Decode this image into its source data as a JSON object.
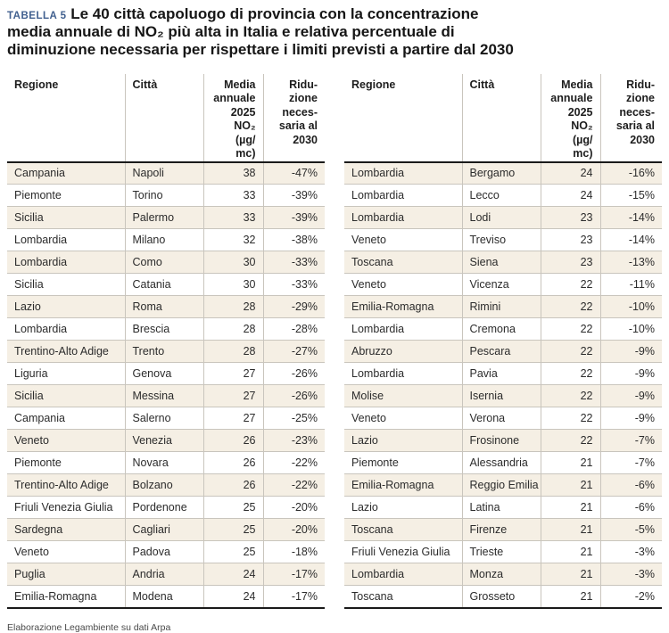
{
  "page": {
    "tag_label": "TABELLA 5",
    "title": "Le 40 città capoluogo di provincia con la concentrazione\nmedia annuale di NO₂ più alta in Italia e relativa percentuale di\ndiminuzione necessaria per rispettare i limiti previsti a partire dal 2030",
    "footer": "Elaborazione Legambiente su dati Arpa"
  },
  "columns": {
    "region": "Regione",
    "city": "Città",
    "annual_mean": "Media\nannuale\n2025\nNO₂ (µg/\nmc)",
    "reduction": "Ridu-\nzione\nneces-\nsaria al\n2030"
  },
  "tables": [
    {
      "rows": [
        [
          "Campania",
          "Napoli",
          "38",
          "-47%"
        ],
        [
          "Piemonte",
          "Torino",
          "33",
          "-39%"
        ],
        [
          "Sicilia",
          "Palermo",
          "33",
          "-39%"
        ],
        [
          "Lombardia",
          "Milano",
          "32",
          "-38%"
        ],
        [
          "Lombardia",
          "Como",
          "30",
          "-33%"
        ],
        [
          "Sicilia",
          "Catania",
          "30",
          "-33%"
        ],
        [
          "Lazio",
          "Roma",
          "28",
          "-29%"
        ],
        [
          "Lombardia",
          "Brescia",
          "28",
          "-28%"
        ],
        [
          "Trentino-Alto Adige",
          "Trento",
          "28",
          "-27%"
        ],
        [
          "Liguria",
          "Genova",
          "27",
          "-26%"
        ],
        [
          "Sicilia",
          "Messina",
          "27",
          "-26%"
        ],
        [
          "Campania",
          "Salerno",
          "27",
          "-25%"
        ],
        [
          "Veneto",
          "Venezia",
          "26",
          "-23%"
        ],
        [
          "Piemonte",
          "Novara",
          "26",
          "-22%"
        ],
        [
          "Trentino-Alto Adige",
          "Bolzano",
          "26",
          "-22%"
        ],
        [
          "Friuli Venezia Giulia",
          "Pordenone",
          "25",
          "-20%"
        ],
        [
          "Sardegna",
          "Cagliari",
          "25",
          "-20%"
        ],
        [
          "Veneto",
          "Padova",
          "25",
          "-18%"
        ],
        [
          "Puglia",
          "Andria",
          "24",
          "-17%"
        ],
        [
          "Emilia-Romagna",
          "Modena",
          "24",
          "-17%"
        ]
      ]
    },
    {
      "rows": [
        [
          "Lombardia",
          "Bergamo",
          "24",
          "-16%"
        ],
        [
          "Lombardia",
          "Lecco",
          "24",
          "-15%"
        ],
        [
          "Lombardia",
          "Lodi",
          "23",
          "-14%"
        ],
        [
          "Veneto",
          "Treviso",
          "23",
          "-14%"
        ],
        [
          "Toscana",
          "Siena",
          "23",
          "-13%"
        ],
        [
          "Veneto",
          "Vicenza",
          "22",
          "-11%"
        ],
        [
          "Emilia-Romagna",
          "Rimini",
          "22",
          "-10%"
        ],
        [
          "Lombardia",
          "Cremona",
          "22",
          "-10%"
        ],
        [
          "Abruzzo",
          "Pescara",
          "22",
          "-9%"
        ],
        [
          "Lombardia",
          "Pavia",
          "22",
          "-9%"
        ],
        [
          "Molise",
          "Isernia",
          "22",
          "-9%"
        ],
        [
          "Veneto",
          "Verona",
          "22",
          "-9%"
        ],
        [
          "Lazio",
          "Frosinone",
          "22",
          "-7%"
        ],
        [
          "Piemonte",
          "Alessandria",
          "21",
          "-7%"
        ],
        [
          "Emilia-Romagna",
          "Reggio Emilia",
          "21",
          "-6%"
        ],
        [
          "Lazio",
          "Latina",
          "21",
          "-6%"
        ],
        [
          "Toscana",
          "Firenze",
          "21",
          "-5%"
        ],
        [
          "Friuli Venezia Giulia",
          "Trieste",
          "21",
          "-3%"
        ],
        [
          "Lombardia",
          "Monza",
          "21",
          "-3%"
        ],
        [
          "Toscana",
          "Grosseto",
          "21",
          "-2%"
        ]
      ]
    }
  ]
}
